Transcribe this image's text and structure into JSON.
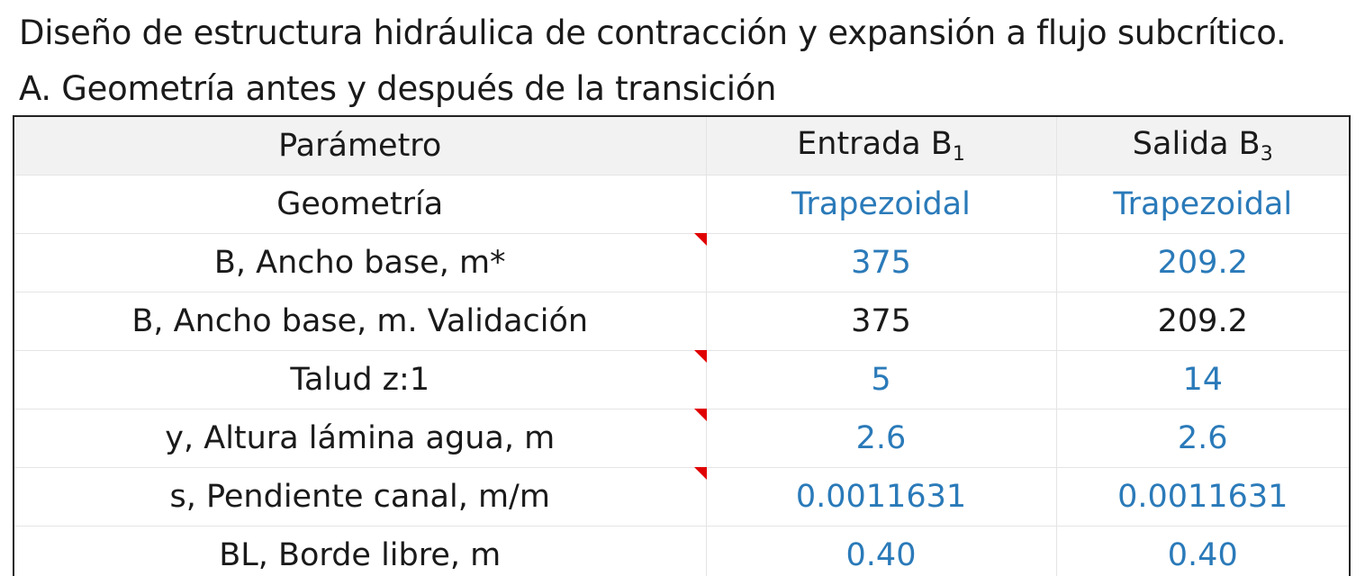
{
  "document": {
    "title": "Diseño de estructura hidráulica de contracción y expansión a flujo subcrítico.",
    "section_title": "A. Geometría antes y después de la transición"
  },
  "table": {
    "headers": {
      "param": "Parámetro",
      "inlet": "Entrada B",
      "inlet_sub": "1",
      "outlet": "Salida B",
      "outlet_sub": "3"
    },
    "rows": [
      {
        "label": "Geometría",
        "inlet": "Trapezoidal",
        "outlet": "Trapezoidal",
        "style": "blue",
        "has_note": false
      },
      {
        "label": "B, Ancho base, m*",
        "inlet": "375",
        "outlet": "209.2",
        "style": "blue",
        "has_note": true
      },
      {
        "label": "B, Ancho base, m. Validación",
        "inlet": "375",
        "outlet": "209.2",
        "style": "dark",
        "has_note": false
      },
      {
        "label": "Talud z:1",
        "inlet": "5",
        "outlet": "14",
        "style": "blue",
        "has_note": true
      },
      {
        "label": "y, Altura lámina agua, m",
        "inlet": "2.6",
        "outlet": "2.6",
        "style": "blue",
        "has_note": true
      },
      {
        "label": "s, Pendiente canal, m/m",
        "inlet": "0.0011631",
        "outlet": "0.0011631",
        "style": "blue",
        "has_note": true
      },
      {
        "label": "BL, Borde libre, m",
        "inlet": "0.40",
        "outlet": "0.40",
        "style": "blue",
        "has_note": false
      }
    ]
  },
  "colors": {
    "input_value": "#2a7ab9",
    "computed_value": "#1a1a1a",
    "header_background": "#f2f2f2",
    "comment_marker": "#e00000"
  }
}
